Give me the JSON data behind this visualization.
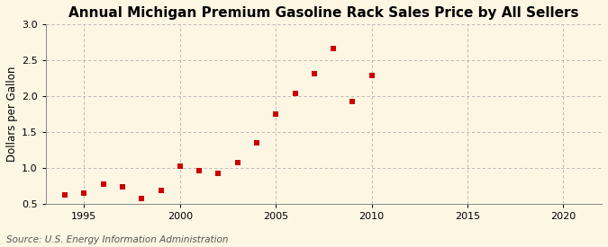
{
  "title": "Annual Michigan Premium Gasoline Rack Sales Price by All Sellers",
  "ylabel": "Dollars per Gallon",
  "source": "Source: U.S. Energy Information Administration",
  "years": [
    1994,
    1995,
    1996,
    1997,
    1998,
    1999,
    2000,
    2001,
    2002,
    2003,
    2004,
    2005,
    2006,
    2007,
    2008,
    2009,
    2010
  ],
  "values": [
    0.63,
    0.65,
    0.77,
    0.74,
    0.58,
    0.69,
    1.03,
    0.96,
    0.92,
    1.07,
    1.35,
    1.75,
    2.04,
    2.31,
    2.66,
    1.93,
    2.29
  ],
  "marker_color": "#cc0000",
  "marker": "s",
  "marker_size": 4,
  "xlim": [
    1993,
    2022
  ],
  "ylim": [
    0.5,
    3.0
  ],
  "yticks": [
    0.5,
    1.0,
    1.5,
    2.0,
    2.5,
    3.0
  ],
  "xticks": [
    1995,
    2000,
    2005,
    2010,
    2015,
    2020
  ],
  "background_color": "#fdf6e3",
  "plot_bg_color": "#fdf6e3",
  "grid_color": "#aaaaaa",
  "title_fontsize": 11,
  "label_fontsize": 8.5,
  "tick_fontsize": 8,
  "source_fontsize": 7.5
}
